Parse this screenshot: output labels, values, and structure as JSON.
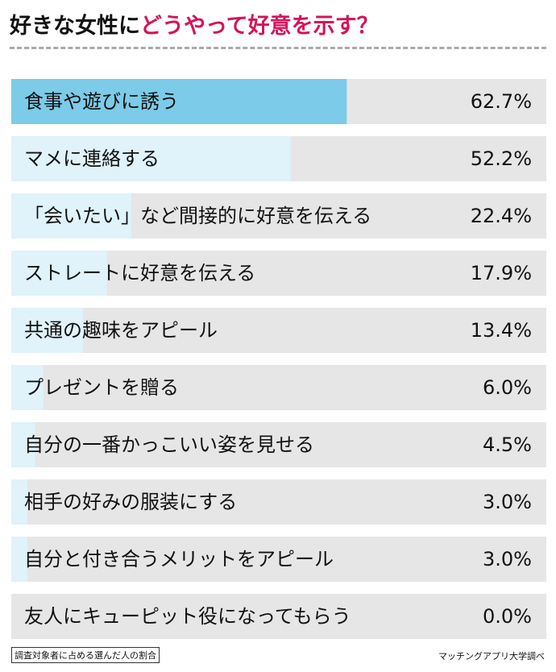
{
  "title": {
    "part1": "好きな女性に",
    "part2": "どうやって好意を示す？"
  },
  "chart_data": {
    "type": "bar",
    "orientation": "horizontal",
    "categories": [
      "食事や遊びに誘う",
      "マメに連絡する",
      "「会いたい」など間接的に好意を伝える",
      "ストレートに好意を伝える",
      "共通の趣味をアピール",
      "プレゼントを贈る",
      "自分の一番かっこいい姿を見せる",
      "相手の好みの服装にする",
      "自分と付き合うメリットをアピール",
      "友人にキューピット役になってもらう"
    ],
    "values": [
      62.7,
      52.2,
      22.4,
      17.9,
      13.4,
      6.0,
      4.5,
      3.0,
      3.0,
      0.0
    ],
    "value_labels": [
      "62.7%",
      "52.2%",
      "22.4%",
      "17.9%",
      "13.4%",
      "6.0%",
      "4.5%",
      "3.0%",
      "3.0%",
      "0.0%"
    ],
    "xlim": [
      0,
      100
    ],
    "colors": {
      "track": "#e6e6e6",
      "bar": "#e0f2fa",
      "highlight_bar": "#7ccbe8"
    }
  },
  "footer": {
    "note": "調査対象者に占める選んだ人の割合",
    "source": "マッチングアプリ大学調べ"
  }
}
